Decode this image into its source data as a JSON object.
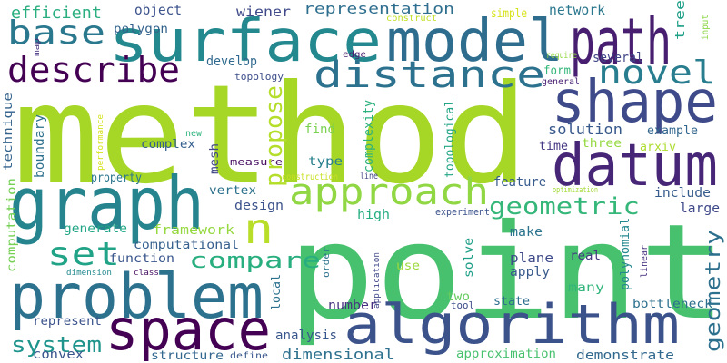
{
  "words": [
    {
      "text": "method",
      "color": "#a6d626"
    },
    {
      "text": "point",
      "color": "#47c16e"
    },
    {
      "text": "surface",
      "color": "#23898e"
    },
    {
      "text": "model",
      "color": "#2e6d8e"
    },
    {
      "text": "path",
      "color": "#481f70"
    },
    {
      "text": "shape",
      "color": "#3e4a89"
    },
    {
      "text": "datum",
      "color": "#482677"
    },
    {
      "text": "graph",
      "color": "#25848e"
    },
    {
      "text": "problem",
      "color": "#2c728e"
    },
    {
      "text": "algorithm",
      "color": "#3b528b"
    },
    {
      "text": "space",
      "color": "#440154"
    },
    {
      "text": "describe",
      "color": "#440154"
    },
    {
      "text": "distance",
      "color": "#2c728e"
    },
    {
      "text": "novel",
      "color": "#287d8e"
    },
    {
      "text": "approach",
      "color": "#90d743"
    },
    {
      "text": "base",
      "color": "#2a788e"
    },
    {
      "text": "propose",
      "color": "#b5de2b"
    },
    {
      "text": "set",
      "color": "#20a386"
    },
    {
      "text": "n",
      "color": "#b8de29"
    },
    {
      "text": "compare",
      "color": "#29af7f"
    },
    {
      "text": "geometric",
      "color": "#35b779"
    },
    {
      "text": "geometry",
      "color": "#2d708e"
    },
    {
      "text": "system",
      "color": "#1f948c"
    },
    {
      "text": "efficient",
      "color": "#29af7f"
    },
    {
      "text": "object",
      "color": "#3b528b"
    },
    {
      "text": "wiener",
      "color": "#3e4989"
    },
    {
      "text": "representation",
      "color": "#2e6e8e"
    },
    {
      "text": "network",
      "color": "#2a778e"
    },
    {
      "text": "simple",
      "color": "#d8e219"
    },
    {
      "text": "tree",
      "color": "#1fa088"
    },
    {
      "text": "input",
      "color": "#8bd646"
    },
    {
      "text": "construct",
      "color": "#c2df23"
    },
    {
      "text": "map",
      "color": "#46337e"
    },
    {
      "text": "polygon",
      "color": "#33638d"
    },
    {
      "text": "edge",
      "color": "#481f70"
    },
    {
      "text": "develop",
      "color": "#30698e"
    },
    {
      "text": "topology",
      "color": "#3d4e8a"
    },
    {
      "text": "require",
      "color": "#93d741"
    },
    {
      "text": "several",
      "color": "#404688"
    },
    {
      "text": "form",
      "color": "#35b779"
    },
    {
      "text": "general",
      "color": "#482173"
    },
    {
      "text": "optimization",
      "color": "#a2da37"
    },
    {
      "text": "computation",
      "color": "#75d054"
    },
    {
      "text": "technique",
      "color": "#33638d"
    },
    {
      "text": "boundary",
      "color": "#2d708e"
    },
    {
      "text": "complex",
      "color": "#355f8d"
    },
    {
      "text": "new",
      "color": "#2eb37c"
    },
    {
      "text": "performance",
      "color": "#d5e21a"
    },
    {
      "text": "find",
      "color": "#7ad151"
    },
    {
      "text": "complexity",
      "color": "#2db27d"
    },
    {
      "text": "topological",
      "color": "#21a585"
    },
    {
      "text": "solution",
      "color": "#38598c"
    },
    {
      "text": "example",
      "color": "#31668e"
    },
    {
      "text": "time",
      "color": "#453781"
    },
    {
      "text": "three",
      "color": "#95d840"
    },
    {
      "text": "arxiv",
      "color": "#addc30"
    },
    {
      "text": "type",
      "color": "#277f8e"
    },
    {
      "text": "mesh",
      "color": "#3f4788"
    },
    {
      "text": "measure",
      "color": "#470e61"
    },
    {
      "text": "construction",
      "color": "#c8e020"
    },
    {
      "text": "line",
      "color": "#404688"
    },
    {
      "text": "property",
      "color": "#2a768e"
    },
    {
      "text": "feature",
      "color": "#375b8d"
    },
    {
      "text": "include",
      "color": "#365c8d"
    },
    {
      "text": "vertex",
      "color": "#2c728e"
    },
    {
      "text": "design",
      "color": "#3b528b"
    },
    {
      "text": "high",
      "color": "#26ad81"
    },
    {
      "text": "experiment",
      "color": "#3b528b"
    },
    {
      "text": "large",
      "color": "#3e4989"
    },
    {
      "text": "generate",
      "color": "#21a685"
    },
    {
      "text": "framework",
      "color": "#95d840"
    },
    {
      "text": "computational",
      "color": "#355f8d"
    },
    {
      "text": "make",
      "color": "#2c738e"
    },
    {
      "text": "polynomial",
      "color": "#24878e"
    },
    {
      "text": "linear",
      "color": "#46307e"
    },
    {
      "text": "function",
      "color": "#39558c"
    },
    {
      "text": "real",
      "color": "#453882"
    },
    {
      "text": "plane",
      "color": "#3e4a89"
    },
    {
      "text": "dimension",
      "color": "#23898e"
    },
    {
      "text": "class",
      "color": "#471063"
    },
    {
      "text": "order",
      "color": "#2c728e"
    },
    {
      "text": "application",
      "color": "#3f4788"
    },
    {
      "text": "use",
      "color": "#9bd93c"
    },
    {
      "text": "solve",
      "color": "#1f9f88"
    },
    {
      "text": "apply",
      "color": "#38598c"
    },
    {
      "text": "many",
      "color": "#31b57b"
    },
    {
      "text": "local",
      "color": "#2c728e"
    },
    {
      "text": "two",
      "color": "#65cb5e"
    },
    {
      "text": "tool",
      "color": "#3d4d8a"
    },
    {
      "text": "state",
      "color": "#2e6e8e"
    },
    {
      "text": "bottleneck",
      "color": "#2d708e"
    },
    {
      "text": "represent",
      "color": "#3b528b"
    },
    {
      "text": "number",
      "color": "#46327e"
    },
    {
      "text": "convex",
      "color": "#39568c"
    },
    {
      "text": "analysis",
      "color": "#39568c"
    },
    {
      "text": "structure",
      "color": "#31668e"
    },
    {
      "text": "define",
      "color": "#38588c"
    },
    {
      "text": "dimensional",
      "color": "#2d718e"
    },
    {
      "text": "approximation",
      "color": "#48c16e"
    },
    {
      "text": "demonstrate",
      "color": "#31688e"
    }
  ]
}
